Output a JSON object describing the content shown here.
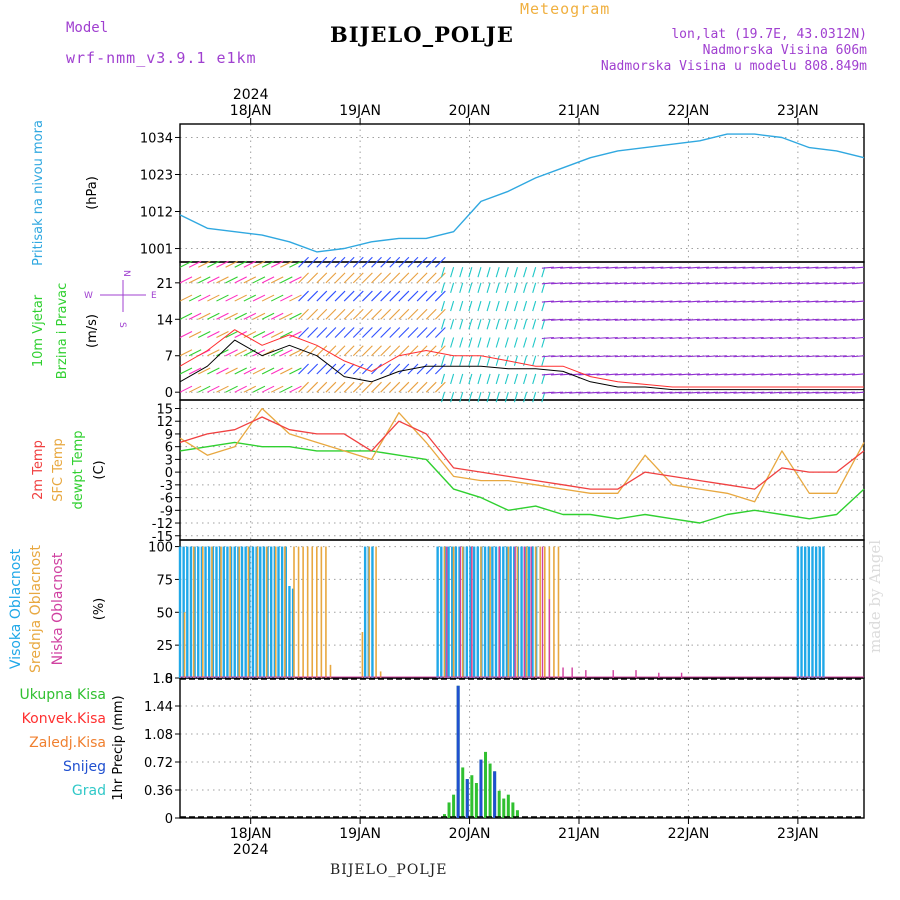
{
  "header": {
    "model_label": "Model",
    "model_name": "wrf-nmm_v3.9.1 e1km",
    "meteogram_label": "Meteogram",
    "station": "BIJELO_POLJE",
    "lonlat": "lon,lat (19.7E, 43.0312N)",
    "altitude": "Nadmorska Visina 606m",
    "model_altitude": "Nadmorska Visina u modelu 808.849m"
  },
  "footer": {
    "station": "BIJELO_POLJE",
    "credit": "made by Angel"
  },
  "colors": {
    "pressure": "#30a8e0",
    "wind_speed": "#000000",
    "gust": "#ff3030",
    "temp_2m": "#f04040",
    "temp_sfc": "#e8a840",
    "dewpoint": "#30d030",
    "cloud_high": "#20a8e8",
    "cloud_mid": "#e8a840",
    "cloud_low": "#d040a0",
    "precip_total": "#30c030",
    "precip_snow": "#2050d0",
    "label_purple": "#a040d0"
  },
  "chart_data": [
    {
      "id": "pressure",
      "type": "line",
      "ylabel_lines": [
        "Pritisak na nivou mora",
        "(hPa)"
      ],
      "yticks": [
        1001,
        1012,
        1023,
        1034
      ],
      "ylim": [
        997,
        1038
      ],
      "x_top_year": "2024",
      "x_tick_labels": [
        "18JAN",
        "19JAN",
        "20JAN",
        "21JAN",
        "22JAN",
        "23JAN"
      ],
      "x": [
        0,
        6,
        12,
        18,
        24,
        30,
        36,
        42,
        48,
        54,
        60,
        66,
        72,
        78,
        84,
        90,
        96,
        102,
        108,
        114,
        120,
        126,
        132,
        138,
        144,
        150
      ],
      "series": [
        {
          "values": [
            1011,
            1007,
            1006,
            1005,
            1003,
            1000,
            1001,
            1003,
            1004,
            1004,
            1006,
            1015,
            1018,
            1022,
            1025,
            1028,
            1030,
            1031,
            1032,
            1033,
            1035,
            1035,
            1034,
            1031,
            1030,
            1028
          ]
        }
      ]
    },
    {
      "id": "wind",
      "type": "line",
      "ylabel_lines": [
        "10m Vjetar",
        "Brzina i Pravac",
        "(m/s)"
      ],
      "compass_labels": {
        "n": "N",
        "s": "S",
        "e": "E",
        "w": "W"
      },
      "yticks": [
        0,
        7,
        14,
        21
      ],
      "ylim": [
        -1.5,
        25
      ],
      "x": [
        0,
        6,
        12,
        18,
        24,
        30,
        36,
        42,
        48,
        54,
        60,
        66,
        72,
        78,
        84,
        90,
        96,
        102,
        108,
        114,
        120,
        126,
        132,
        138,
        144,
        150
      ],
      "series": [
        {
          "values": [
            2,
            5,
            10,
            7,
            9,
            7,
            3,
            2,
            4,
            5,
            5,
            5,
            4.5,
            4.5,
            4,
            2,
            1,
            1,
            0.5,
            0.5,
            0.5,
            0.5,
            0.5,
            0.5,
            0.5,
            0.5
          ]
        },
        {
          "values": [
            5,
            8,
            12,
            9,
            11,
            9,
            6,
            4,
            7,
            8,
            7,
            7,
            6,
            5,
            5,
            3,
            2,
            1.5,
            1,
            1,
            1,
            1,
            1,
            1,
            1,
            1
          ]
        }
      ]
    },
    {
      "id": "temperature",
      "type": "line",
      "ylabel_lines": [
        "2m Temp",
        "SFC Temp",
        "dewpt Temp",
        "(C)"
      ],
      "yticks": [
        -15,
        -12,
        -9,
        -6,
        -3,
        0,
        3,
        6,
        9,
        12,
        15
      ],
      "ylim": [
        -16,
        17
      ],
      "x": [
        0,
        6,
        12,
        18,
        24,
        30,
        36,
        42,
        48,
        54,
        60,
        66,
        72,
        78,
        84,
        90,
        96,
        102,
        108,
        114,
        120,
        126,
        132,
        138,
        144,
        150
      ],
      "series": [
        {
          "values": [
            7,
            9,
            10,
            13,
            10,
            9,
            9,
            5,
            12,
            9,
            1,
            0,
            -1,
            -2,
            -3,
            -4,
            -4,
            0,
            -1,
            -2,
            -3,
            -4,
            1,
            0,
            0,
            5
          ]
        },
        {
          "values": [
            8,
            4,
            6,
            15,
            9,
            7,
            5,
            3,
            14,
            7,
            -1,
            -2,
            -2,
            -3,
            -4,
            -5,
            -5,
            4,
            -3,
            -4,
            -5,
            -7,
            5,
            -5,
            -5,
            7
          ]
        },
        {
          "values": [
            5,
            6,
            7,
            6,
            6,
            5,
            5,
            5,
            4,
            3,
            -4,
            -6,
            -9,
            -8,
            -10,
            -10,
            -11,
            -10,
            -11,
            -12,
            -10,
            -9,
            -10,
            -11,
            -10,
            -4
          ]
        }
      ]
    },
    {
      "id": "clouds",
      "type": "bar",
      "ylabel_lines": [
        "Visoka Oblacnost",
        "Srednja Oblacnost",
        "Niska Oblacnost",
        "(%)"
      ],
      "yticks": [
        0,
        25,
        50,
        75,
        100
      ],
      "ylim": [
        0,
        105
      ],
      "series": [
        {
          "values": [
            [
              0,
              100
            ],
            [
              0.8,
              100
            ],
            [
              1.6,
              100
            ],
            [
              2.4,
              100
            ],
            [
              3.2,
              100
            ],
            [
              4,
              100
            ],
            [
              4.8,
              100
            ],
            [
              5.6,
              100
            ],
            [
              6.4,
              100
            ],
            [
              7.2,
              100
            ],
            [
              8,
              100
            ],
            [
              8.8,
              100
            ],
            [
              9.6,
              100
            ],
            [
              10.4,
              100
            ],
            [
              11.2,
              100
            ],
            [
              12,
              100
            ],
            [
              12.8,
              100
            ],
            [
              13.6,
              100
            ],
            [
              14.4,
              100
            ],
            [
              15.2,
              100
            ],
            [
              16,
              100
            ],
            [
              16.8,
              100
            ],
            [
              17.6,
              100
            ],
            [
              18.4,
              100
            ],
            [
              19.2,
              100
            ],
            [
              20,
              100
            ],
            [
              20.8,
              100
            ],
            [
              21.6,
              100
            ],
            [
              22.4,
              100
            ],
            [
              23.2,
              100
            ],
            [
              24,
              70
            ],
            [
              24.8,
              68
            ],
            [
              40.6,
              100
            ],
            [
              41.4,
              100
            ],
            [
              42.2,
              100
            ],
            [
              56.5,
              100
            ],
            [
              57.3,
              100
            ],
            [
              58.1,
              100
            ],
            [
              58.9,
              100
            ],
            [
              59.7,
              100
            ],
            [
              60.5,
              100
            ],
            [
              61.3,
              100
            ],
            [
              62.1,
              100
            ],
            [
              62.9,
              100
            ],
            [
              63.7,
              100
            ],
            [
              64.5,
              100
            ],
            [
              65.3,
              100
            ],
            [
              66.1,
              100
            ],
            [
              66.9,
              100
            ],
            [
              67.7,
              100
            ],
            [
              68.5,
              100
            ],
            [
              69.3,
              100
            ],
            [
              70.1,
              100
            ],
            [
              70.9,
              100
            ],
            [
              71.7,
              100
            ],
            [
              72.5,
              100
            ],
            [
              73.3,
              100
            ],
            [
              74.1,
              100
            ],
            [
              74.9,
              100
            ],
            [
              75.7,
              100
            ],
            [
              76.5,
              100
            ],
            [
              77.3,
              100
            ],
            [
              78.1,
              100
            ],
            [
              135.5,
              100
            ],
            [
              136.3,
              100
            ],
            [
              137.1,
              100
            ],
            [
              137.9,
              100
            ],
            [
              138.7,
              100
            ],
            [
              139.5,
              100
            ],
            [
              140.3,
              100
            ],
            [
              141.1,
              100
            ]
          ]
        },
        {
          "values": [
            [
              1,
              50
            ],
            [
              3,
              100
            ],
            [
              5,
              100
            ],
            [
              7,
              100
            ],
            [
              9,
              100
            ],
            [
              11,
              100
            ],
            [
              13,
              100
            ],
            [
              15,
              100
            ],
            [
              17,
              100
            ],
            [
              19,
              100
            ],
            [
              21,
              100
            ],
            [
              23,
              100
            ],
            [
              25,
              100
            ],
            [
              26,
              100
            ],
            [
              27,
              100
            ],
            [
              28,
              100
            ],
            [
              29,
              100
            ],
            [
              30,
              100
            ],
            [
              31,
              100
            ],
            [
              32,
              100
            ],
            [
              33,
              10
            ],
            [
              40,
              35
            ],
            [
              41.5,
              100
            ],
            [
              43,
              100
            ],
            [
              44,
              5
            ],
            [
              58,
              100
            ],
            [
              60,
              100
            ],
            [
              62,
              100
            ],
            [
              64,
              100
            ],
            [
              66,
              100
            ],
            [
              68,
              100
            ],
            [
              70,
              100
            ],
            [
              72,
              100
            ],
            [
              74,
              100
            ],
            [
              76,
              100
            ],
            [
              78,
              100
            ],
            [
              79,
              100
            ],
            [
              80,
              100
            ],
            [
              81,
              100
            ],
            [
              82,
              100
            ],
            [
              83,
              100
            ]
          ]
        },
        {
          "values": [
            [
              58.5,
              100
            ],
            [
              61.5,
              100
            ],
            [
              64,
              100
            ],
            [
              70,
              100
            ],
            [
              73.5,
              100
            ],
            [
              75.5,
              100
            ],
            [
              77,
              100
            ],
            [
              79.5,
              100
            ],
            [
              81,
              60
            ],
            [
              84,
              8
            ],
            [
              86,
              8
            ],
            [
              89,
              6
            ],
            [
              95,
              6
            ],
            [
              100,
              6
            ],
            [
              105,
              4
            ],
            [
              110,
              4
            ]
          ]
        }
      ]
    },
    {
      "id": "precip",
      "type": "bar",
      "legend": [
        "Ukupna Kisa",
        "Konvek.Kisa",
        "Zaledj.Kisa",
        "Snijeg",
        "Grad"
      ],
      "ylabel": "1hr Precip (mm)",
      "yticks": [
        0,
        0.36,
        0.72,
        1.08,
        1.44,
        1.8
      ],
      "ylim": [
        0,
        1.8
      ],
      "x_tick_labels": [
        "18JAN",
        "19JAN",
        "20JAN",
        "21JAN",
        "22JAN",
        "23JAN"
      ],
      "x_bottom_year": "2024",
      "series": [
        {
          "values": [
            [
              58,
              0.05
            ],
            [
              59,
              0.2
            ],
            [
              60,
              0.3
            ],
            [
              61,
              1.7
            ],
            [
              62,
              0.65
            ],
            [
              63,
              0.5
            ],
            [
              64,
              0.55
            ],
            [
              65,
              0.45
            ],
            [
              66,
              0.75
            ],
            [
              67,
              0.85
            ],
            [
              68,
              0.7
            ],
            [
              69,
              0.6
            ],
            [
              70,
              0.35
            ],
            [
              71,
              0.25
            ],
            [
              72,
              0.3
            ],
            [
              73,
              0.2
            ],
            [
              74,
              0.1
            ]
          ]
        },
        {
          "values": [
            [
              61,
              1.7
            ],
            [
              63,
              0.5
            ],
            [
              66,
              0.75
            ],
            [
              69,
              0.6
            ]
          ]
        }
      ]
    }
  ]
}
